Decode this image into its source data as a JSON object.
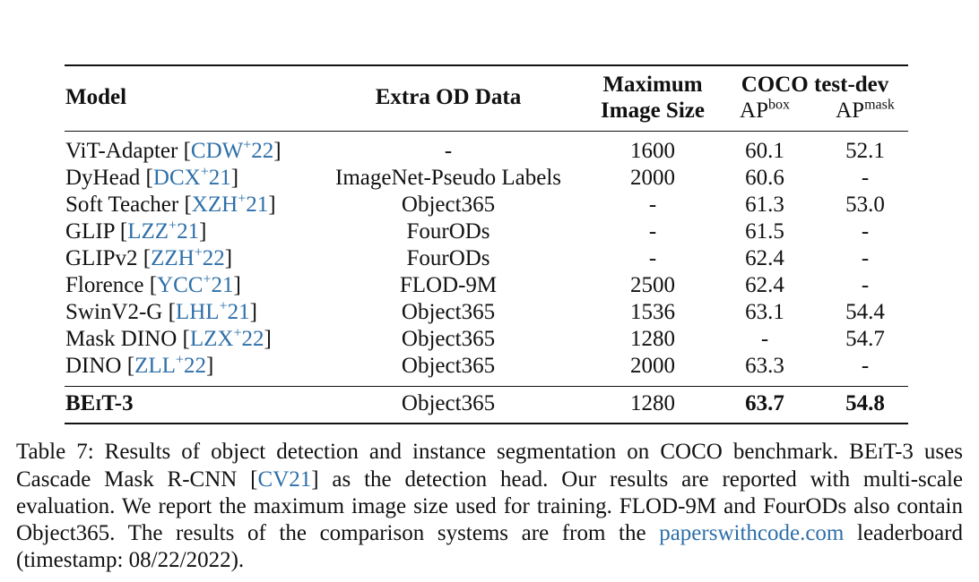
{
  "table": {
    "headers": {
      "model": "Model",
      "extra_od": "Extra OD Data",
      "max_line1": "Maximum",
      "max_line2": "Image Size",
      "coco": "COCO test-dev",
      "ap": "AP",
      "box": "box",
      "mask": "mask"
    },
    "rows": [
      {
        "model": "ViT-Adapter",
        "cite_base": "CDW",
        "cite_year": "22",
        "extra": "-",
        "size": "1600",
        "box": "60.1",
        "mask": "52.1"
      },
      {
        "model": "DyHead",
        "cite_base": "DCX",
        "cite_year": "21",
        "extra": "ImageNet-Pseudo Labels",
        "size": "2000",
        "box": "60.6",
        "mask": "-"
      },
      {
        "model": "Soft Teacher",
        "cite_base": "XZH",
        "cite_year": "21",
        "extra": "Object365",
        "size": "-",
        "box": "61.3",
        "mask": "53.0"
      },
      {
        "model": "GLIP",
        "cite_base": "LZZ",
        "cite_year": "21",
        "extra": "FourODs",
        "size": "-",
        "box": "61.5",
        "mask": "-"
      },
      {
        "model": "GLIPv2",
        "cite_base": "ZZH",
        "cite_year": "22",
        "extra": "FourODs",
        "size": "-",
        "box": "62.4",
        "mask": "-"
      },
      {
        "model": "Florence",
        "cite_base": "YCC",
        "cite_year": "21",
        "extra": "FLOD-9M",
        "size": "2500",
        "box": "62.4",
        "mask": "-"
      },
      {
        "model": "SwinV2-G",
        "cite_base": "LHL",
        "cite_year": "21",
        "extra": "Object365",
        "size": "1536",
        "box": "63.1",
        "mask": "54.4"
      },
      {
        "model": "Mask DINO",
        "cite_base": "LZX",
        "cite_year": "22",
        "extra": "Object365",
        "size": "1280",
        "box": "-",
        "mask": "54.7"
      },
      {
        "model": "DINO",
        "cite_base": "ZLL",
        "cite_year": "22",
        "extra": "Object365",
        "size": "2000",
        "box": "63.3",
        "mask": "-"
      }
    ],
    "final": {
      "model_a": "BE",
      "model_b": "I",
      "model_c": "T-3",
      "extra": "Object365",
      "size": "1280",
      "box": "63.7",
      "mask": "54.8"
    }
  },
  "caption": {
    "p1": "Table 7: Results of object detection and instance segmentation on COCO benchmark. BE",
    "p1_sc": "I",
    "p2": "T-3 uses Cascade Mask R-CNN [",
    "cite": "CV21",
    "p3": "] as the detection head. Our results are reported with multi-scale evaluation. We report the maximum image size used for training. FLOD-9M and FourODs also contain Object365. The results of the comparison systems are from the ",
    "link": "paperswithcode.com",
    "p4": " leaderboard (timestamp: 08/22/2022)."
  },
  "colors": {
    "link": "#2e6fa8",
    "text": "#111111"
  }
}
